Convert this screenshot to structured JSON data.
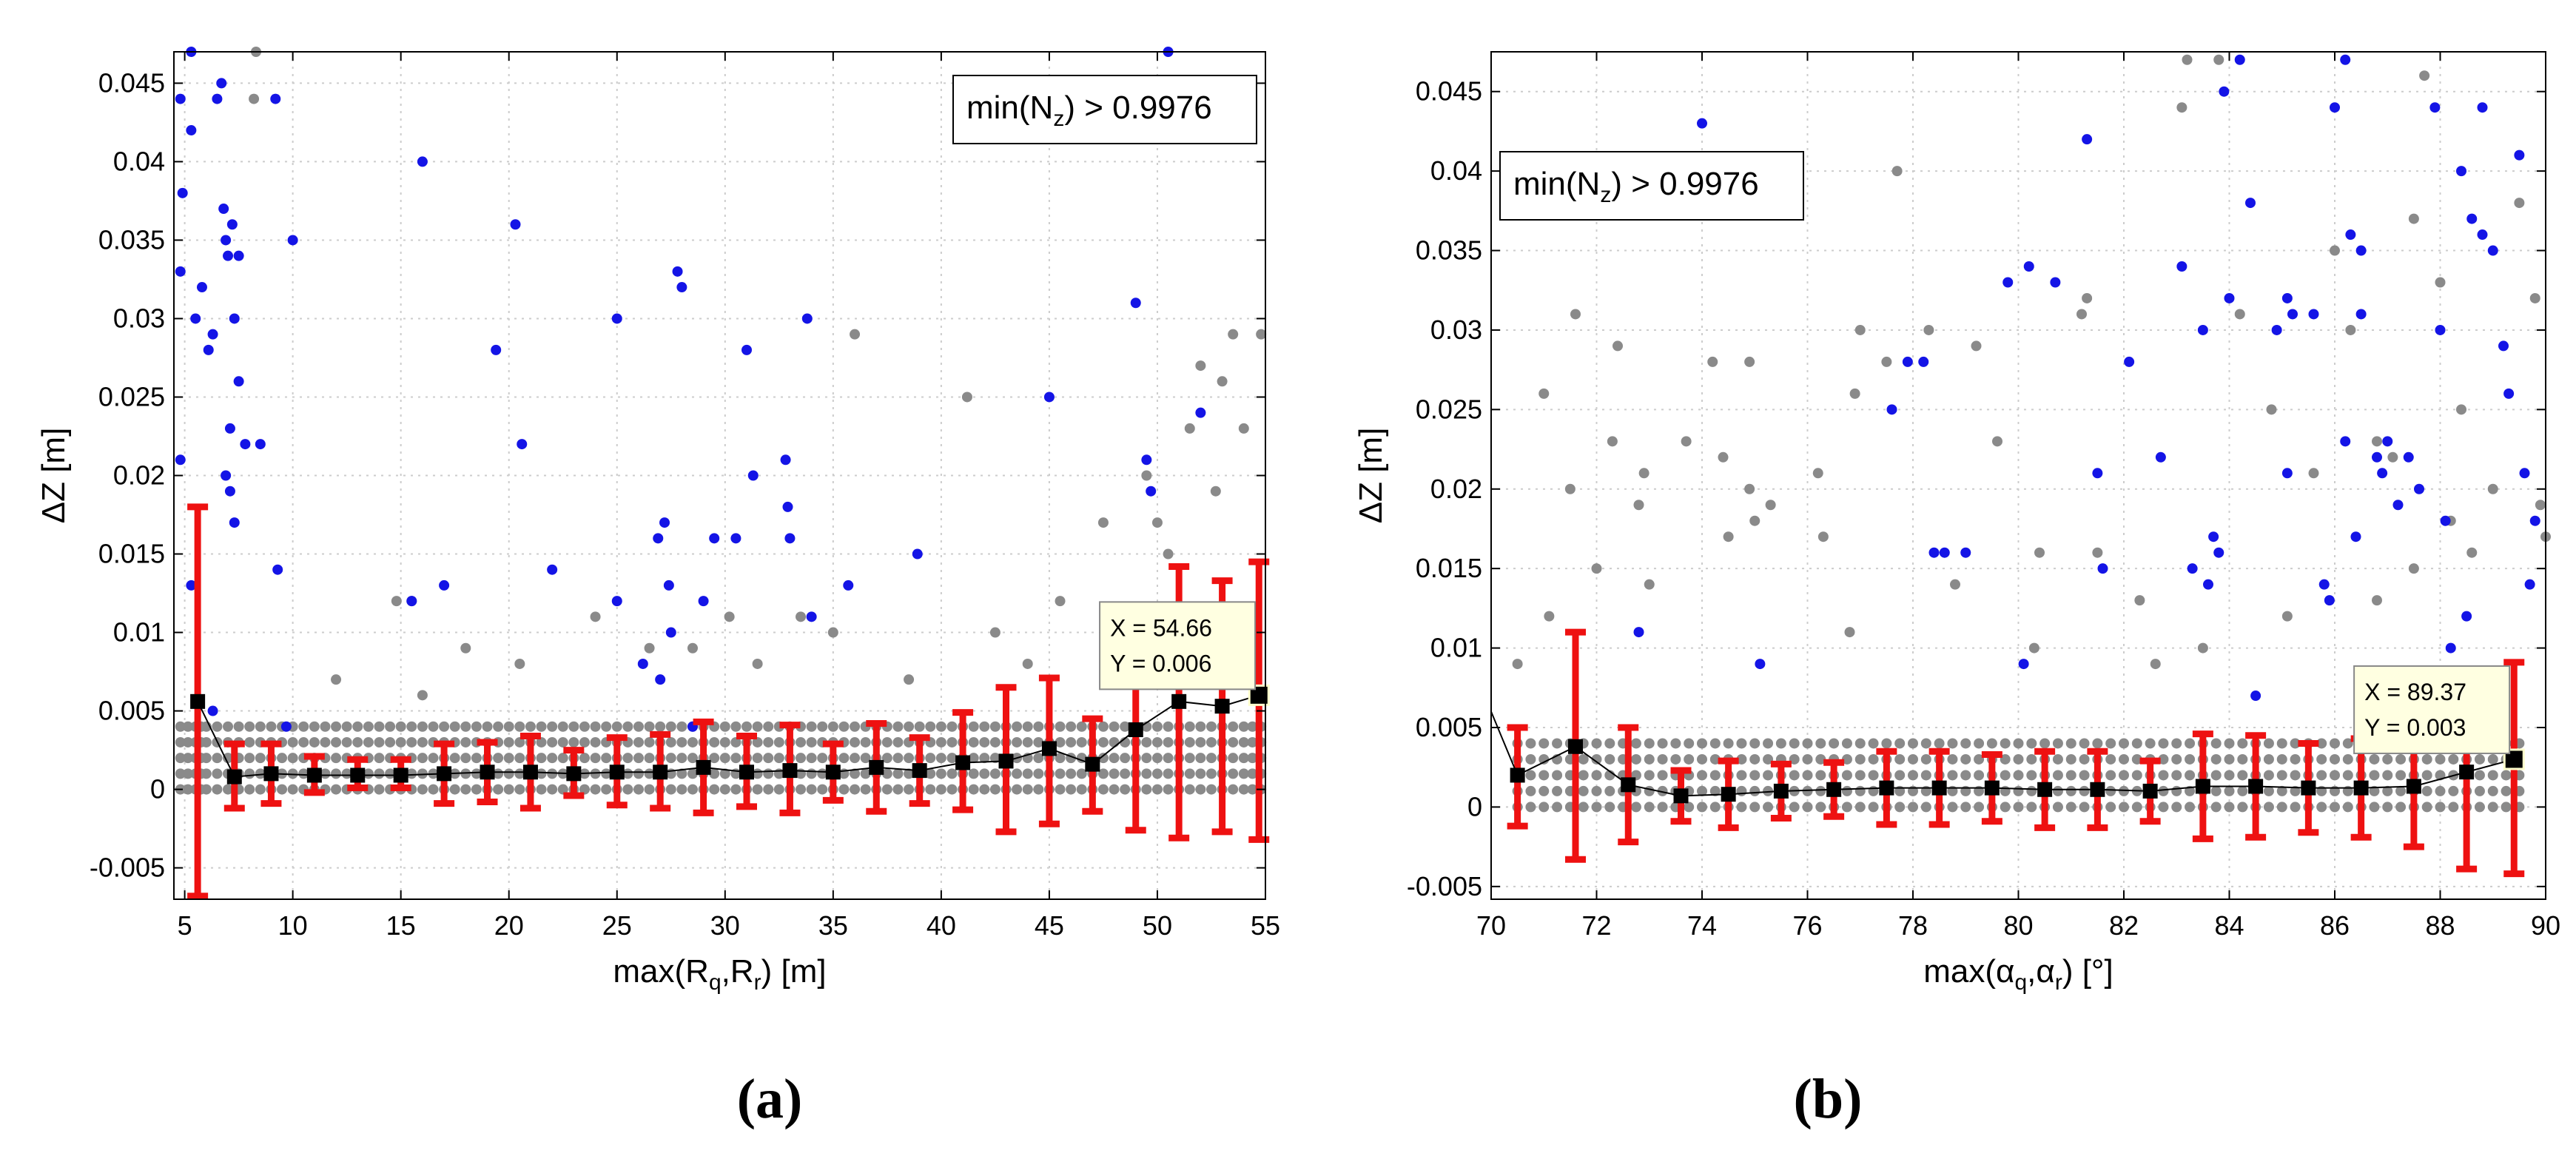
{
  "chart_data": [
    {
      "type": "scatter",
      "panel_label": "(a)",
      "xlabel": "max(R",
      "xlabel_sub1": "q",
      "xlabel_mid": ",R",
      "xlabel_sub2": "r",
      "xlabel_end": ") [m]",
      "ylabel": "ΔZ [m]",
      "xlim": [
        4.5,
        55
      ],
      "ylim": [
        -0.007,
        0.047
      ],
      "xticks": [
        5,
        10,
        15,
        20,
        25,
        30,
        35,
        40,
        45,
        50,
        55
      ],
      "yticks": [
        -0.005,
        0,
        0.005,
        0.01,
        0.015,
        0.02,
        0.025,
        0.03,
        0.035,
        0.04,
        0.045
      ],
      "ytick_labels": [
        "-0.005",
        "0",
        "0.005",
        "0.01",
        "0.015",
        "0.02",
        "0.025",
        "0.03",
        "0.035",
        "0.04",
        "0.045"
      ],
      "grid": true,
      "legend_text": "min(N",
      "legend_sub": "z",
      "legend_end": ") > 0.9976",
      "legend_placement": "top-right",
      "datatip": {
        "x_label": "X = 54.66",
        "y_label": "Y = 0.006",
        "x": 54.66,
        "y": 0.006
      },
      "colors": {
        "gray": "#8a8a8a",
        "blue": "#1414e6",
        "red": "#ee1111",
        "black": "#000000"
      },
      "gray_x": [
        4.8,
        5.5,
        6,
        7,
        8,
        9,
        10,
        11,
        12,
        13,
        14,
        15,
        16,
        17,
        18,
        19,
        20,
        21,
        22,
        23,
        24,
        25,
        26,
        27,
        28,
        29,
        30,
        31,
        32,
        33,
        34,
        35,
        36,
        37,
        38,
        39,
        40,
        41,
        42,
        43,
        44,
        45,
        46,
        47,
        48,
        49,
        50,
        51,
        52,
        53,
        54,
        54.8
      ],
      "gray_y": [
        0,
        0.001,
        0.002,
        0.003,
        0.004
      ],
      "gray_extra": [
        [
          8.3,
          0.047
        ],
        [
          8.2,
          0.044
        ],
        [
          15.5,
          0.012
        ],
        [
          14.8,
          0.012
        ],
        [
          30.2,
          0.011
        ],
        [
          24,
          0.011
        ],
        [
          36,
          0.029
        ],
        [
          41.2,
          0.025
        ],
        [
          53,
          0.026
        ],
        [
          53.5,
          0.029
        ],
        [
          54.8,
          0.029
        ],
        [
          52,
          0.027
        ],
        [
          50.5,
          0.015
        ],
        [
          49.5,
          0.02
        ],
        [
          48,
          0.01
        ],
        [
          45.5,
          0.012
        ],
        [
          33.5,
          0.011
        ],
        [
          35,
          0.01
        ],
        [
          42.5,
          0.01
        ],
        [
          26.5,
          0.009
        ],
        [
          20.5,
          0.008
        ],
        [
          18,
          0.009
        ],
        [
          12,
          0.007
        ],
        [
          16,
          0.006
        ],
        [
          28.5,
          0.009
        ],
        [
          31.5,
          0.008
        ],
        [
          38.5,
          0.007
        ],
        [
          44,
          0.008
        ],
        [
          47.5,
          0.017
        ],
        [
          51.5,
          0.023
        ],
        [
          52.7,
          0.019
        ],
        [
          54,
          0.023
        ],
        [
          50,
          0.017
        ]
      ],
      "blue_points": [
        [
          4.8,
          0.044
        ],
        [
          5.3,
          0.047
        ],
        [
          5.3,
          0.042
        ],
        [
          5.8,
          0.032
        ],
        [
          4.9,
          0.038
        ],
        [
          4.8,
          0.033
        ],
        [
          5.5,
          0.03
        ],
        [
          6.1,
          0.028
        ],
        [
          6.5,
          0.044
        ],
        [
          6.7,
          0.045
        ],
        [
          6.8,
          0.037
        ],
        [
          7.2,
          0.036
        ],
        [
          7,
          0.034
        ],
        [
          7.5,
          0.034
        ],
        [
          6.9,
          0.035
        ],
        [
          7.3,
          0.03
        ],
        [
          7.1,
          0.023
        ],
        [
          7.5,
          0.026
        ],
        [
          7.8,
          0.022
        ],
        [
          6.3,
          0.029
        ],
        [
          6.9,
          0.02
        ],
        [
          7.1,
          0.019
        ],
        [
          7.3,
          0.017
        ],
        [
          8.5,
          0.022
        ],
        [
          9.2,
          0.044
        ],
        [
          10,
          0.035
        ],
        [
          9.3,
          0.014
        ],
        [
          4.8,
          0.021
        ],
        [
          5.3,
          0.013
        ],
        [
          6.3,
          0.005
        ],
        [
          9.7,
          0.004
        ],
        [
          16,
          0.04
        ],
        [
          15.5,
          0.012
        ],
        [
          17,
          0.013
        ],
        [
          19.4,
          0.028
        ],
        [
          20.3,
          0.036
        ],
        [
          20.6,
          0.022
        ],
        [
          22,
          0.014
        ],
        [
          25,
          0.03
        ],
        [
          26.2,
          0.008
        ],
        [
          26.9,
          0.016
        ],
        [
          27.2,
          0.017
        ],
        [
          27.5,
          0.01
        ],
        [
          27.8,
          0.033
        ],
        [
          28,
          0.032
        ],
        [
          28.5,
          0.004
        ],
        [
          29,
          0.012
        ],
        [
          29.5,
          0.016
        ],
        [
          30.5,
          0.016
        ],
        [
          31,
          0.028
        ],
        [
          31.3,
          0.02
        ],
        [
          32.8,
          0.021
        ],
        [
          32.9,
          0.018
        ],
        [
          33,
          0.016
        ],
        [
          33.8,
          0.03
        ],
        [
          34,
          0.011
        ],
        [
          35.7,
          0.013
        ],
        [
          38.9,
          0.015
        ],
        [
          45,
          0.025
        ],
        [
          49,
          0.031
        ],
        [
          49.5,
          0.021
        ],
        [
          49.7,
          0.019
        ],
        [
          50.5,
          0.047
        ],
        [
          52,
          0.024
        ],
        [
          27,
          0.007
        ],
        [
          27.4,
          0.013
        ],
        [
          25,
          0.012
        ]
      ],
      "mean_x": [
        5.6,
        7.3,
        9,
        11,
        13,
        15,
        17,
        19,
        21,
        23,
        25,
        27,
        29,
        31,
        33,
        35,
        37,
        39,
        41,
        43,
        45,
        47,
        49,
        51,
        53,
        54.7
      ],
      "mean_y": [
        0.0056,
        0.0008,
        0.001,
        0.0009,
        0.0009,
        0.0009,
        0.001,
        0.0011,
        0.0011,
        0.001,
        0.0011,
        0.0011,
        0.0014,
        0.0011,
        0.0012,
        0.0011,
        0.0014,
        0.0012,
        0.0017,
        0.0018,
        0.0026,
        0.0016,
        0.0038,
        0.0056,
        0.0053,
        0.006
      ],
      "err_low": [
        -0.0068,
        -0.0012,
        -0.0009,
        -0.0002,
        0.0001,
        0.0001,
        -0.0009,
        -0.0008,
        -0.0012,
        -0.0004,
        -0.001,
        -0.0012,
        -0.0015,
        -0.0011,
        -0.0015,
        -0.0007,
        -0.0014,
        -0.0009,
        -0.0013,
        -0.0027,
        -0.0022,
        -0.0014,
        -0.0026,
        -0.0031,
        -0.0027,
        -0.0032
      ],
      "err_high": [
        0.018,
        0.0029,
        0.0029,
        0.0021,
        0.0019,
        0.0019,
        0.0029,
        0.003,
        0.0034,
        0.0025,
        0.0033,
        0.0035,
        0.0043,
        0.0034,
        0.0041,
        0.0029,
        0.0042,
        0.0033,
        0.0049,
        0.0065,
        0.0071,
        0.0045,
        0.0096,
        0.0142,
        0.0133,
        0.0145
      ]
    },
    {
      "type": "scatter",
      "panel_label": "(b)",
      "xlabel": "max(α",
      "xlabel_sub1": "q",
      "xlabel_mid": ",α",
      "xlabel_sub2": "r",
      "xlabel_end": ") [°]",
      "ylabel": "ΔZ [m]",
      "xlim": [
        70,
        90
      ],
      "ylim": [
        -0.0058,
        0.0475
      ],
      "xticks": [
        70,
        72,
        74,
        76,
        78,
        80,
        82,
        84,
        86,
        88,
        90
      ],
      "yticks": [
        -0.005,
        0,
        0.005,
        0.01,
        0.015,
        0.02,
        0.025,
        0.03,
        0.035,
        0.04,
        0.045
      ],
      "ytick_labels": [
        "-0.005",
        "0",
        "0.005",
        "0.01",
        "0.015",
        "0.02",
        "0.025",
        "0.03",
        "0.035",
        "0.04",
        "0.045"
      ],
      "grid": true,
      "legend_text": "min(N",
      "legend_sub": "z",
      "legend_end": ") > 0.9976",
      "legend_placement": "top-left",
      "datatip": {
        "x_label": "X = 89.37",
        "y_label": "Y = 0.003",
        "x": 89.37,
        "y": 0.003
      },
      "colors": {
        "gray": "#8a8a8a",
        "blue": "#1414e6",
        "red": "#ee1111",
        "black": "#000000"
      },
      "gray_x": [
        70.5,
        71,
        71.5,
        72,
        72.5,
        73,
        73.5,
        74,
        74.5,
        75,
        75.5,
        76,
        76.5,
        77,
        77.5,
        78,
        78.5,
        79,
        79.5,
        80,
        80.5,
        81,
        81.5,
        82,
        82.5,
        83,
        83.5,
        84,
        84.5,
        85,
        85.5,
        86,
        86.5,
        87,
        87.5,
        88,
        88.5,
        89,
        89.5
      ],
      "gray_y": [
        0,
        0.001,
        0.002,
        0.003,
        0.004
      ],
      "gray_extra": [
        [
          71,
          0.026
        ],
        [
          71.6,
          0.031
        ],
        [
          72.4,
          0.029
        ],
        [
          72.3,
          0.023
        ],
        [
          71.5,
          0.02
        ],
        [
          72.9,
          0.021
        ],
        [
          72.8,
          0.019
        ],
        [
          73.7,
          0.023
        ],
        [
          74.2,
          0.028
        ],
        [
          74.9,
          0.028
        ],
        [
          74.4,
          0.022
        ],
        [
          74.9,
          0.02
        ],
        [
          75.3,
          0.019
        ],
        [
          75,
          0.018
        ],
        [
          74.5,
          0.017
        ],
        [
          76.2,
          0.021
        ],
        [
          76.3,
          0.017
        ],
        [
          76.9,
          0.026
        ],
        [
          77,
          0.03
        ],
        [
          77.5,
          0.028
        ],
        [
          77.7,
          0.04
        ],
        [
          78.3,
          0.03
        ],
        [
          79.2,
          0.029
        ],
        [
          79.6,
          0.023
        ],
        [
          80.4,
          0.016
        ],
        [
          81.2,
          0.031
        ],
        [
          81.3,
          0.032
        ],
        [
          81.5,
          0.016
        ],
        [
          82.3,
          0.013
        ],
        [
          83.1,
          0.044
        ],
        [
          83.2,
          0.047
        ],
        [
          83.8,
          0.047
        ],
        [
          84.2,
          0.031
        ],
        [
          84.8,
          0.025
        ],
        [
          85.6,
          0.021
        ],
        [
          86,
          0.035
        ],
        [
          86.3,
          0.03
        ],
        [
          86.8,
          0.023
        ],
        [
          87.1,
          0.022
        ],
        [
          87.5,
          0.037
        ],
        [
          87.7,
          0.046
        ],
        [
          88,
          0.033
        ],
        [
          88.4,
          0.025
        ],
        [
          88.6,
          0.016
        ],
        [
          89.5,
          0.038
        ],
        [
          89.8,
          0.032
        ],
        [
          89.9,
          0.019
        ],
        [
          90,
          0.017
        ],
        [
          73,
          0.014
        ],
        [
          72,
          0.015
        ],
        [
          71.1,
          0.012
        ],
        [
          70.5,
          0.009
        ],
        [
          76.8,
          0.011
        ],
        [
          78.8,
          0.014
        ],
        [
          80.3,
          0.01
        ],
        [
          82.6,
          0.009
        ],
        [
          83.5,
          0.01
        ],
        [
          85.1,
          0.012
        ],
        [
          86.8,
          0.013
        ],
        [
          87.5,
          0.015
        ],
        [
          88.2,
          0.018
        ],
        [
          89,
          0.02
        ]
      ],
      "blue_points": [
        [
          74,
          0.043
        ],
        [
          72.8,
          0.011
        ],
        [
          75.1,
          0.009
        ],
        [
          77.6,
          0.025
        ],
        [
          77.9,
          0.028
        ],
        [
          78.2,
          0.028
        ],
        [
          78.4,
          0.016
        ],
        [
          78.6,
          0.016
        ],
        [
          79,
          0.016
        ],
        [
          79.8,
          0.033
        ],
        [
          80.2,
          0.034
        ],
        [
          80.7,
          0.033
        ],
        [
          80.1,
          0.009
        ],
        [
          81.3,
          0.042
        ],
        [
          81.6,
          0.015
        ],
        [
          81.5,
          0.021
        ],
        [
          82.1,
          0.028
        ],
        [
          82.7,
          0.022
        ],
        [
          83.1,
          0.034
        ],
        [
          83.3,
          0.015
        ],
        [
          83.5,
          0.03
        ],
        [
          83.6,
          0.014
        ],
        [
          83.7,
          0.017
        ],
        [
          83.8,
          0.016
        ],
        [
          83.9,
          0.045
        ],
        [
          84,
          0.032
        ],
        [
          84.2,
          0.047
        ],
        [
          84.4,
          0.038
        ],
        [
          84.5,
          0.007
        ],
        [
          84.9,
          0.03
        ],
        [
          85.1,
          0.032
        ],
        [
          85.2,
          0.031
        ],
        [
          85.6,
          0.031
        ],
        [
          85.8,
          0.014
        ],
        [
          86,
          0.044
        ],
        [
          86.2,
          0.047
        ],
        [
          86.2,
          0.023
        ],
        [
          86.3,
          0.036
        ],
        [
          86.5,
          0.031
        ],
        [
          86.5,
          0.035
        ],
        [
          86.8,
          0.022
        ],
        [
          86.9,
          0.021
        ],
        [
          87,
          0.023
        ],
        [
          87.2,
          0.019
        ],
        [
          87.4,
          0.022
        ],
        [
          87.6,
          0.02
        ],
        [
          87.9,
          0.044
        ],
        [
          88,
          0.03
        ],
        [
          88.1,
          0.018
        ],
        [
          88.2,
          0.01
        ],
        [
          88.4,
          0.04
        ],
        [
          88.6,
          0.037
        ],
        [
          88.8,
          0.044
        ],
        [
          88.8,
          0.036
        ],
        [
          89,
          0.035
        ],
        [
          89.2,
          0.029
        ],
        [
          89.3,
          0.026
        ],
        [
          89.5,
          0.041
        ],
        [
          89.6,
          0.021
        ],
        [
          89.7,
          0.014
        ],
        [
          89.8,
          0.018
        ],
        [
          86.4,
          0.017
        ],
        [
          85.9,
          0.013
        ],
        [
          88.5,
          0.012
        ],
        [
          85.1,
          0.021
        ]
      ],
      "mean_x": [
        70.5,
        71.6,
        72.6,
        73.6,
        74.5,
        75.5,
        76.5,
        77.5,
        78.5,
        79.5,
        80.5,
        81.5,
        82.5,
        83.5,
        84.5,
        85.5,
        86.5,
        87.5,
        88.5,
        89.4
      ],
      "mean_y": [
        0.002,
        0.0038,
        0.0014,
        0.0007,
        0.0008,
        0.001,
        0.0011,
        0.0012,
        0.0012,
        0.0012,
        0.0011,
        0.0011,
        0.001,
        0.0013,
        0.0013,
        0.0012,
        0.0012,
        0.0013,
        0.0022,
        0.003
      ],
      "err_low": [
        -0.0012,
        -0.0033,
        -0.0022,
        -0.0009,
        -0.0013,
        -0.0007,
        -0.0006,
        -0.0011,
        -0.0011,
        -0.0009,
        -0.0013,
        -0.0013,
        -0.0009,
        -0.002,
        -0.0019,
        -0.0016,
        -0.0019,
        -0.0025,
        -0.0039,
        -0.0042
      ],
      "err_high": [
        0.005,
        0.011,
        0.005,
        0.0023,
        0.0029,
        0.0027,
        0.0028,
        0.0035,
        0.0035,
        0.0033,
        0.0035,
        0.0035,
        0.0029,
        0.0046,
        0.0045,
        0.004,
        0.0043,
        0.0051,
        0.0083,
        0.0091
      ]
    }
  ]
}
